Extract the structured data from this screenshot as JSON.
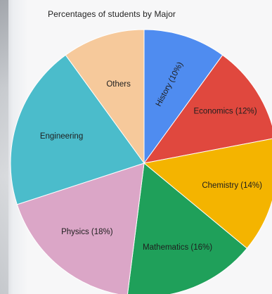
{
  "chart_data": {
    "type": "pie",
    "title": "Percentages of students by Major",
    "start_angle_deg": 0,
    "direction": "clockwise",
    "slices": [
      {
        "label": "History (10%)",
        "value": 10,
        "color": "#4f8cf0",
        "label_rotate": -62
      },
      {
        "label": "Economics (12%)",
        "value": 12,
        "color": "#e0483e",
        "label_rotate": 0
      },
      {
        "label": "Chemistry (14%)",
        "value": 14,
        "color": "#f4b400",
        "label_rotate": 0
      },
      {
        "label": "Mathematics (16%)",
        "value": 16,
        "color": "#1fa05a",
        "label_rotate": 0
      },
      {
        "label": "Physics (18%)",
        "value": 18,
        "color": "#dba6c7",
        "label_rotate": 0
      },
      {
        "label": "Engineering",
        "value": 20,
        "color": "#4bbccb",
        "label_rotate": 0
      },
      {
        "label": "Others",
        "value": 10,
        "color": "#f6c99b",
        "label_rotate": 0
      }
    ]
  }
}
